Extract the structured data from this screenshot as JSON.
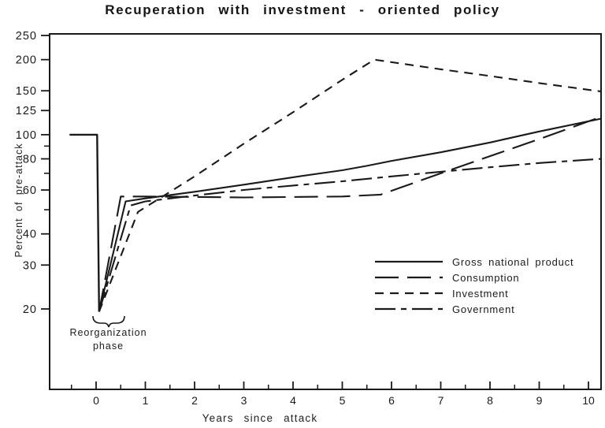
{
  "page": {
    "paper_color": "#ffffff",
    "ink_color": "#1a1a1a"
  },
  "chart_data": {
    "type": "line",
    "title": "Recuperation with investment - oriented policy",
    "xlabel": "Years since attack",
    "ylabel": "Percent of pre-attack",
    "y_scale": "log",
    "x_range": [
      -0.95,
      10.26
    ],
    "y_range": [
      10,
      250
    ],
    "x_ticks_major": [
      0,
      1,
      2,
      3,
      4,
      5,
      6,
      7,
      8,
      9,
      10
    ],
    "x_ticks_minor": [
      -0.5,
      0.5,
      1.5,
      2.5,
      3.5,
      4.5,
      5.5,
      6.5,
      7.5,
      8.5,
      9.5
    ],
    "y_ticks_labeled": [
      250,
      200,
      150,
      125,
      100,
      80,
      60,
      40,
      30,
      20
    ],
    "y_ticks_minor": [
      90,
      70,
      50
    ],
    "grid": false,
    "legend_position": "inside-right-middle",
    "annotation": {
      "line1": "Reorganization",
      "line2": "phase"
    },
    "pre_attack_line": {
      "description": "pre-attack level 100% then vertical drop at attack",
      "points": [
        [
          -0.54,
          100
        ],
        [
          0.02,
          100
        ],
        [
          0.06,
          19.5
        ]
      ]
    },
    "series": [
      {
        "name": "Gross national product",
        "style": "solid",
        "points": [
          [
            0.06,
            19.5
          ],
          [
            0.6,
            54
          ],
          [
            1,
            55.5
          ],
          [
            2,
            59
          ],
          [
            3,
            63
          ],
          [
            4,
            67.5
          ],
          [
            5,
            72
          ],
          [
            5.5,
            75
          ],
          [
            6,
            78.5
          ],
          [
            7,
            85
          ],
          [
            8,
            93
          ],
          [
            9,
            103
          ],
          [
            10.26,
            116
          ]
        ]
      },
      {
        "name": "Consumption",
        "style": "long-dash",
        "points": [
          [
            0.06,
            19.5
          ],
          [
            0.5,
            56.5
          ],
          [
            1,
            56.5
          ],
          [
            3,
            56
          ],
          [
            5,
            56.5
          ],
          [
            5.78,
            57.5
          ],
          [
            7,
            70
          ],
          [
            8,
            82
          ],
          [
            9,
            96
          ],
          [
            10.26,
            118
          ]
        ]
      },
      {
        "name": "Investment",
        "style": "short-dash",
        "points": [
          [
            0.06,
            19.5
          ],
          [
            0.85,
            49
          ],
          [
            2,
            68
          ],
          [
            3,
            92
          ],
          [
            4,
            123
          ],
          [
            5,
            166
          ],
          [
            5.65,
            200
          ],
          [
            7,
            183
          ],
          [
            8,
            172
          ],
          [
            9,
            161
          ],
          [
            10.26,
            149
          ]
        ]
      },
      {
        "name": "Government",
        "style": "dash-dot",
        "points": [
          [
            0.06,
            19.5
          ],
          [
            0.7,
            52
          ],
          [
            1,
            54
          ],
          [
            2,
            57
          ],
          [
            3,
            60
          ],
          [
            4,
            62.5
          ],
          [
            5,
            65
          ],
          [
            6,
            68
          ],
          [
            7,
            71
          ],
          [
            8,
            74
          ],
          [
            9,
            77
          ],
          [
            10.26,
            80
          ]
        ]
      }
    ]
  }
}
